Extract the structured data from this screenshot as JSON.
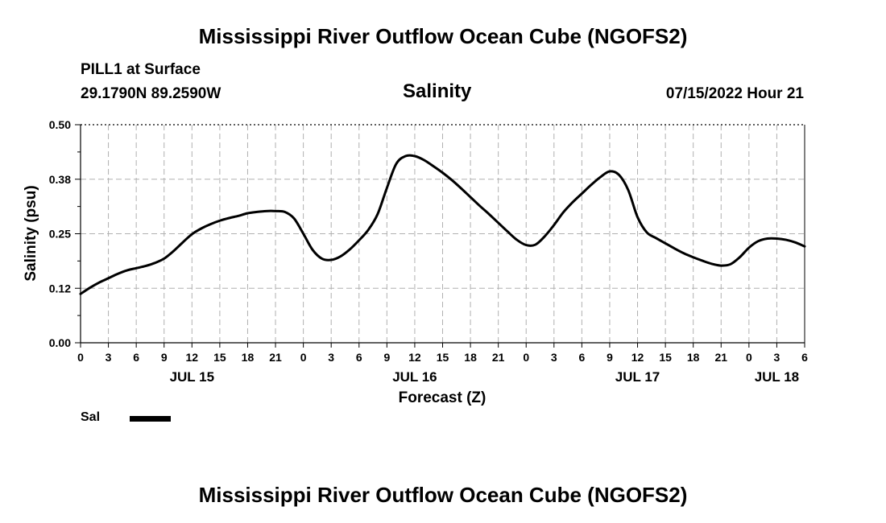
{
  "header": {
    "title": "Mississippi River Outflow Ocean Cube (NGOFS2)",
    "station": "PILL1 at Surface",
    "coordinates": "29.1790N  89.2590W",
    "subtitle": "Salinity",
    "datetime": "07/15/2022 Hour 21"
  },
  "footer": {
    "title": "Mississippi River Outflow Ocean Cube (NGOFS2)"
  },
  "legend": {
    "label": "Sal",
    "color": "#000000"
  },
  "chart_data": {
    "type": "line",
    "title": "Salinity",
    "xlabel": "Forecast (Z)",
    "ylabel": "Salinity (psu)",
    "ylim": [
      0,
      0.5
    ],
    "xlim": [
      0,
      78
    ],
    "x_unit": "hours from JUL 15 00Z",
    "yticks": [
      0,
      0.125,
      0.25,
      0.375,
      0.5
    ],
    "ytick_labels": [
      "0.00",
      "0.12",
      "0.25",
      "0.38",
      "0.50"
    ],
    "xticks": [
      0,
      3,
      6,
      9,
      12,
      15,
      18,
      21,
      24,
      27,
      30,
      33,
      36,
      39,
      42,
      45,
      48,
      51,
      54,
      57,
      60,
      63,
      66,
      69,
      72,
      75,
      78
    ],
    "xtick_labels": [
      "0",
      "3",
      "6",
      "9",
      "12",
      "15",
      "18",
      "21",
      "0",
      "3",
      "6",
      "9",
      "12",
      "15",
      "18",
      "21",
      "0",
      "3",
      "6",
      "9",
      "12",
      "15",
      "18",
      "21",
      "0",
      "3",
      "6"
    ],
    "day_labels": [
      {
        "label": "JUL 15",
        "x": 12
      },
      {
        "label": "JUL 16",
        "x": 36
      },
      {
        "label": "JUL 17",
        "x": 60
      },
      {
        "label": "JUL 18",
        "x": 75
      }
    ],
    "grid": true,
    "series": [
      {
        "name": "Sal",
        "color": "#000000",
        "x": [
          0,
          1,
          2,
          3,
          4,
          5,
          6,
          7,
          8,
          9,
          10,
          11,
          12,
          13,
          14,
          15,
          16,
          17,
          18,
          19,
          20,
          21,
          22,
          23,
          24,
          25,
          26,
          27,
          28,
          29,
          30,
          31,
          32,
          33,
          34,
          35,
          36,
          37,
          38,
          39,
          40,
          41,
          42,
          43,
          44,
          45,
          46,
          47,
          48,
          49,
          50,
          51,
          52,
          53,
          54,
          55,
          56,
          57,
          58,
          59,
          60,
          61,
          62,
          63,
          64,
          65,
          66,
          67,
          68,
          69,
          70,
          71,
          72,
          73,
          74,
          75,
          76,
          77,
          78
        ],
        "values": [
          0.112,
          0.126,
          0.138,
          0.148,
          0.158,
          0.166,
          0.171,
          0.176,
          0.183,
          0.193,
          0.21,
          0.23,
          0.249,
          0.262,
          0.272,
          0.28,
          0.286,
          0.291,
          0.297,
          0.3,
          0.302,
          0.302,
          0.3,
          0.285,
          0.25,
          0.213,
          0.193,
          0.19,
          0.198,
          0.214,
          0.235,
          0.259,
          0.295,
          0.355,
          0.41,
          0.428,
          0.428,
          0.419,
          0.405,
          0.39,
          0.373,
          0.354,
          0.334,
          0.314,
          0.295,
          0.275,
          0.255,
          0.236,
          0.224,
          0.225,
          0.244,
          0.27,
          0.299,
          0.322,
          0.342,
          0.362,
          0.38,
          0.393,
          0.385,
          0.35,
          0.288,
          0.253,
          0.24,
          0.228,
          0.216,
          0.205,
          0.196,
          0.188,
          0.181,
          0.177,
          0.18,
          0.196,
          0.218,
          0.233,
          0.239,
          0.239,
          0.236,
          0.23,
          0.221
        ]
      }
    ]
  }
}
